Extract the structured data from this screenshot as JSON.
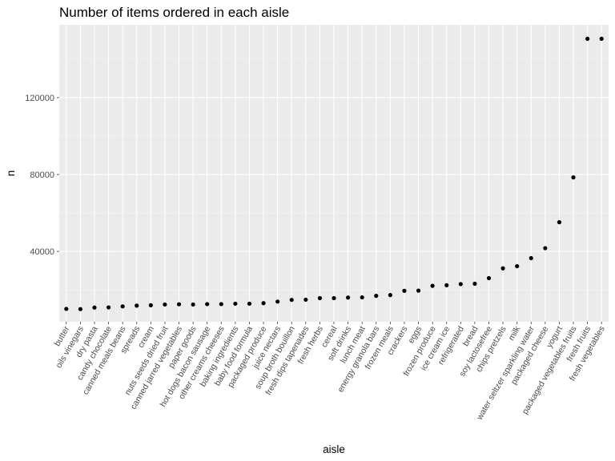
{
  "chart_data": {
    "type": "scatter",
    "title": "Number of items ordered in each aisle",
    "xlabel": "aisle",
    "ylabel": "n",
    "ylim": [
      0,
      152000
    ],
    "yticks": [
      40000,
      80000,
      120000
    ],
    "ytick_labels": [
      "40000",
      "80000",
      "120000"
    ],
    "grid": true,
    "point_color": "#000000",
    "panel_color": "#ebebeb",
    "categories": [
      "butter",
      "oils vinegars",
      "dry pasta",
      "candy chocolate",
      "canned meals beans",
      "spreads",
      "cream",
      "nuts seeds dried fruit",
      "canned jarred vegetables",
      "paper goods",
      "hot dogs bacon sausage",
      "other creams cheeses",
      "baking ingredients",
      "baby food formula",
      "packaged produce",
      "juice nectars",
      "soup broth bouillon",
      "fresh dips tapenades",
      "fresh herbs",
      "cereal",
      "soft drinks",
      "lunch meat",
      "energy granola bars",
      "frozen meals",
      "crackers",
      "eggs",
      "frozen produce",
      "ice cream ice",
      "refrigerated",
      "bread",
      "soy lactosefree",
      "chips pretzels",
      "milk",
      "water seltzer sparkling water",
      "packaged cheese",
      "yogurt",
      "packaged vegetables fruits",
      "fresh fruits",
      "fresh vegetables"
    ],
    "values": [
      10100,
      10000,
      10800,
      10900,
      11400,
      11800,
      12000,
      12400,
      12500,
      12400,
      12600,
      12600,
      12800,
      12800,
      13100,
      13900,
      14800,
      14900,
      15700,
      15700,
      16000,
      16100,
      16900,
      17300,
      19500,
      19600,
      22100,
      22400,
      23000,
      23200,
      26100,
      31200,
      32300,
      36500,
      41700,
      55200,
      78500,
      150600,
      150600
    ]
  }
}
